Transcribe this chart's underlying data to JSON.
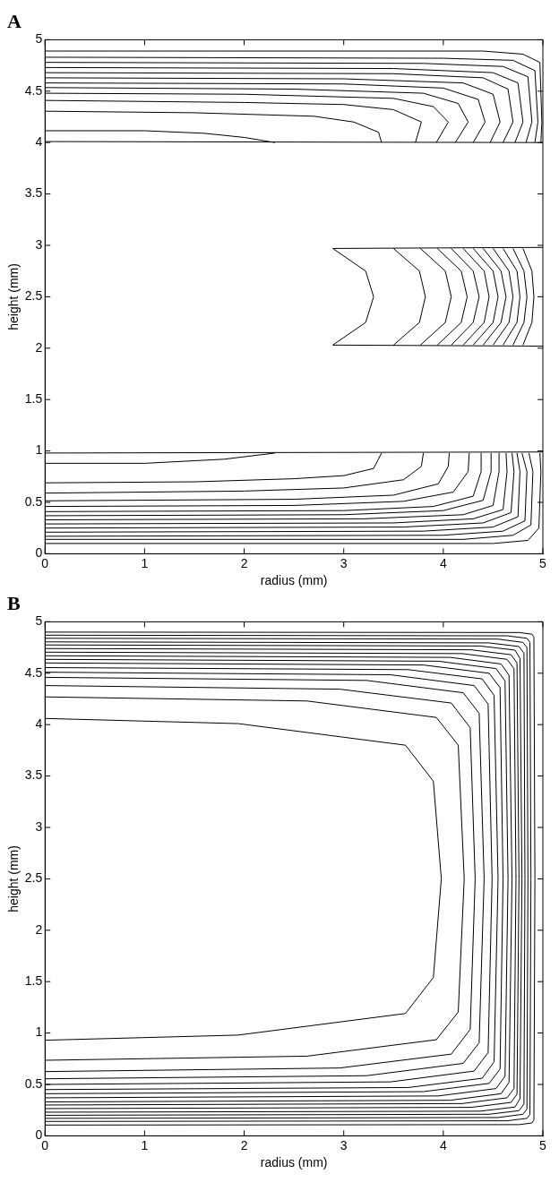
{
  "chart_data": [
    {
      "type": "line",
      "title": "A",
      "xlabel": "radius (mm)",
      "ylabel": "height (mm)",
      "color": "#000000",
      "marker": "none",
      "line_style": "solid",
      "grid": false,
      "legend": false,
      "xlim": [
        0,
        5
      ],
      "ylim": [
        0,
        5
      ],
      "xticks": [
        0,
        1,
        2,
        3,
        4,
        5
      ],
      "yticks": [
        0,
        0.5,
        1,
        1.5,
        2,
        2.5,
        3,
        3.5,
        4,
        4.5,
        5
      ],
      "series": [
        {
          "x": [
            0,
            5
          ],
          "values": [
            4.01,
            4.0
          ]
        },
        {
          "x": [
            0,
            1.0,
            1.6,
            2.0,
            2.31
          ],
          "values": [
            4.115,
            4.115,
            4.09,
            4.05,
            4.0
          ]
        },
        {
          "x": [
            0,
            1.5,
            2.7,
            3.1,
            3.35,
            3.38
          ],
          "values": [
            4.305,
            4.29,
            4.256,
            4.2,
            4.1,
            4.0
          ]
        },
        {
          "x": [
            0,
            2,
            3.0,
            3.5,
            3.78,
            3.72
          ],
          "values": [
            4.41,
            4.39,
            4.37,
            4.32,
            4.2,
            4.0
          ]
        },
        {
          "x": [
            0,
            2,
            3.5,
            3.9,
            4.05,
            3.93
          ],
          "values": [
            4.48,
            4.47,
            4.43,
            4.35,
            4.2,
            4.0
          ]
        },
        {
          "x": [
            0,
            2.5,
            3.8,
            4.15,
            4.25,
            4.12
          ],
          "values": [
            4.535,
            4.52,
            4.48,
            4.38,
            4.2,
            4.0
          ]
        },
        {
          "x": [
            0,
            3,
            4.0,
            4.35,
            4.42,
            4.3
          ],
          "values": [
            4.58,
            4.57,
            4.53,
            4.42,
            4.2,
            4.0
          ]
        },
        {
          "x": [
            0,
            3,
            4.2,
            4.5,
            4.57,
            4.47
          ],
          "values": [
            4.63,
            4.62,
            4.58,
            4.47,
            4.2,
            4.0
          ]
        },
        {
          "x": [
            0,
            3.5,
            4.4,
            4.65,
            4.7,
            4.6
          ],
          "values": [
            4.68,
            4.67,
            4.63,
            4.52,
            4.2,
            4.0
          ]
        },
        {
          "x": [
            0,
            3.5,
            4.5,
            4.75,
            4.8,
            4.72
          ],
          "values": [
            4.73,
            4.72,
            4.68,
            4.58,
            4.2,
            4.0
          ]
        },
        {
          "x": [
            0,
            3.8,
            4.6,
            4.85,
            4.89,
            4.83
          ],
          "values": [
            4.78,
            4.77,
            4.74,
            4.64,
            4.2,
            4.0
          ]
        },
        {
          "x": [
            0,
            4,
            4.7,
            4.92,
            4.95,
            4.92
          ],
          "values": [
            4.83,
            4.82,
            4.8,
            4.7,
            4.2,
            4.0
          ]
        },
        {
          "x": [
            0,
            4.4,
            4.8,
            4.97,
            4.99,
            4.98
          ],
          "values": [
            4.89,
            4.89,
            4.86,
            4.78,
            4.2,
            4.0
          ]
        },
        {
          "x": [
            2.89,
            5
          ],
          "values": [
            2.97,
            2.98
          ]
        },
        {
          "x": [
            2.89,
            5
          ],
          "values": [
            2.03,
            2.02
          ]
        },
        {
          "x": [
            2.89,
            3.22,
            3.3,
            3.22,
            2.89
          ],
          "values": [
            2.03,
            2.25,
            2.5,
            2.75,
            2.97
          ]
        },
        {
          "x": [
            3.5,
            3.76,
            3.82,
            3.76,
            3.5
          ],
          "values": [
            2.03,
            2.25,
            2.5,
            2.75,
            2.97
          ]
        },
        {
          "x": [
            3.77,
            4.02,
            4.08,
            4.02,
            3.77
          ],
          "values": [
            2.03,
            2.25,
            2.5,
            2.75,
            2.97
          ]
        },
        {
          "x": [
            3.94,
            4.18,
            4.24,
            4.18,
            3.94
          ],
          "values": [
            2.03,
            2.25,
            2.5,
            2.75,
            2.97
          ]
        },
        {
          "x": [
            4.08,
            4.3,
            4.36,
            4.3,
            4.08
          ],
          "values": [
            2.03,
            2.25,
            2.5,
            2.75,
            2.97
          ]
        },
        {
          "x": [
            4.2,
            4.41,
            4.46,
            4.41,
            4.2
          ],
          "values": [
            2.03,
            2.25,
            2.5,
            2.75,
            2.97
          ]
        },
        {
          "x": [
            4.3,
            4.5,
            4.55,
            4.5,
            4.3
          ],
          "values": [
            2.03,
            2.25,
            2.5,
            2.75,
            2.97
          ]
        },
        {
          "x": [
            4.4,
            4.58,
            4.63,
            4.58,
            4.4
          ],
          "values": [
            2.03,
            2.25,
            2.5,
            2.75,
            2.97
          ]
        },
        {
          "x": [
            4.5,
            4.66,
            4.7,
            4.66,
            4.5
          ],
          "values": [
            2.03,
            2.25,
            2.5,
            2.75,
            2.97
          ]
        },
        {
          "x": [
            4.6,
            4.74,
            4.77,
            4.74,
            4.6
          ],
          "values": [
            2.03,
            2.25,
            2.5,
            2.75,
            2.97
          ]
        },
        {
          "x": [
            4.7,
            4.81,
            4.84,
            4.81,
            4.7
          ],
          "values": [
            2.03,
            2.25,
            2.5,
            2.75,
            2.97
          ]
        },
        {
          "x": [
            4.8,
            4.89,
            4.91,
            4.89,
            4.8
          ],
          "values": [
            2.03,
            2.25,
            2.5,
            2.75,
            2.97
          ]
        },
        {
          "x": [
            0,
            5
          ],
          "values": [
            0.98,
            0.99
          ]
        },
        {
          "x": [
            0,
            1.0,
            1.8,
            2.31
          ],
          "values": [
            0.88,
            0.88,
            0.92,
            0.98
          ]
        },
        {
          "x": [
            0,
            1.5,
            2.5,
            3.0,
            3.3,
            3.38
          ],
          "values": [
            0.69,
            0.7,
            0.73,
            0.76,
            0.83,
            0.98
          ]
        },
        {
          "x": [
            0,
            2,
            3,
            3.6,
            3.78,
            3.8
          ],
          "values": [
            0.59,
            0.61,
            0.64,
            0.72,
            0.85,
            0.98
          ]
        },
        {
          "x": [
            0,
            2.5,
            3.5,
            3.95,
            4.05,
            4.06
          ],
          "values": [
            0.515,
            0.53,
            0.57,
            0.68,
            0.85,
            0.98
          ]
        },
        {
          "x": [
            0,
            2.5,
            3.6,
            4.1,
            4.25,
            4.26
          ],
          "values": [
            0.46,
            0.47,
            0.51,
            0.6,
            0.8,
            0.98
          ]
        },
        {
          "x": [
            0,
            3,
            3.9,
            4.3,
            4.38,
            4.38
          ],
          "values": [
            0.41,
            0.42,
            0.46,
            0.56,
            0.8,
            0.98
          ]
        },
        {
          "x": [
            0,
            3,
            4.0,
            4.4,
            4.48,
            4.48
          ],
          "values": [
            0.37,
            0.38,
            0.42,
            0.52,
            0.8,
            0.98
          ]
        },
        {
          "x": [
            0,
            3.2,
            4.2,
            4.5,
            4.56,
            4.56
          ],
          "values": [
            0.33,
            0.34,
            0.38,
            0.47,
            0.8,
            0.98
          ]
        },
        {
          "x": [
            0,
            3.5,
            4.3,
            4.6,
            4.64,
            4.63
          ],
          "values": [
            0.29,
            0.3,
            0.34,
            0.43,
            0.8,
            0.98
          ]
        },
        {
          "x": [
            0,
            3.6,
            4.4,
            4.68,
            4.71,
            4.69
          ],
          "values": [
            0.25,
            0.26,
            0.3,
            0.4,
            0.8,
            0.98
          ]
        },
        {
          "x": [
            0,
            3.8,
            4.5,
            4.75,
            4.77,
            4.74
          ],
          "values": [
            0.21,
            0.22,
            0.26,
            0.36,
            0.8,
            0.98
          ]
        },
        {
          "x": [
            0,
            4,
            4.6,
            4.82,
            4.84,
            4.79
          ],
          "values": [
            0.17,
            0.18,
            0.22,
            0.32,
            0.8,
            0.98
          ]
        },
        {
          "x": [
            0,
            4.2,
            4.7,
            4.88,
            4.9,
            4.86
          ],
          "values": [
            0.14,
            0.14,
            0.18,
            0.28,
            0.8,
            0.98
          ]
        },
        {
          "x": [
            0,
            4.5,
            4.85,
            4.96,
            4.98,
            4.97
          ],
          "values": [
            0.1,
            0.1,
            0.13,
            0.25,
            0.8,
            0.98
          ]
        }
      ]
    },
    {
      "type": "line",
      "title": "B",
      "xlabel": "radius (mm)",
      "ylabel": "height (mm)",
      "color": "#000000",
      "marker": "none",
      "line_style": "solid",
      "grid": false,
      "legend": false,
      "xlim": [
        0,
        5
      ],
      "ylim": [
        0,
        5
      ],
      "xticks": [
        0,
        1,
        2,
        3,
        4,
        5
      ],
      "yticks": [
        0,
        0.5,
        1,
        1.5,
        2,
        2.5,
        3,
        3.5,
        4,
        4.5,
        5
      ],
      "series": [
        {
          "x": [
            0,
            1.94,
            3.62,
            3.9,
            3.98,
            3.9,
            3.62,
            1.94,
            0
          ],
          "values": [
            0.93,
            0.98,
            1.19,
            1.54,
            2.5,
            3.45,
            3.8,
            4.01,
            4.06
          ]
        },
        {
          "x": [
            0,
            2.63,
            3.93,
            4.15,
            4.21,
            4.15,
            3.93,
            2.63,
            0
          ],
          "values": [
            0.735,
            0.775,
            0.935,
            1.205,
            2.5,
            3.8,
            4.07,
            4.23,
            4.27
          ]
        },
        {
          "x": [
            0,
            2.96,
            4.08,
            4.27,
            4.32,
            4.27,
            4.08,
            2.96,
            0
          ],
          "values": [
            0.625,
            0.66,
            0.795,
            1.035,
            2.5,
            3.97,
            4.21,
            4.345,
            4.38
          ]
        },
        {
          "x": [
            0,
            3.23,
            4.2,
            4.36,
            4.41,
            4.36,
            4.2,
            3.23,
            0
          ],
          "values": [
            0.555,
            0.585,
            0.705,
            0.905,
            2.5,
            4.11,
            4.31,
            4.43,
            4.46
          ]
        },
        {
          "x": [
            0,
            3.47,
            4.31,
            4.45,
            4.49,
            4.45,
            4.31,
            3.47,
            0
          ],
          "values": [
            0.5,
            0.525,
            0.63,
            0.81,
            2.5,
            4.2,
            4.38,
            4.485,
            4.51
          ]
        },
        {
          "x": [
            0,
            3.65,
            4.39,
            4.51,
            4.55,
            4.51,
            4.39,
            3.65,
            0
          ],
          "values": [
            0.45,
            0.47,
            0.56,
            0.72,
            2.5,
            4.285,
            4.445,
            4.535,
            4.555
          ]
        },
        {
          "x": [
            0,
            3.8,
            4.46,
            4.57,
            4.6,
            4.57,
            4.46,
            3.8,
            0
          ],
          "values": [
            0.41,
            0.43,
            0.51,
            0.65,
            2.5,
            4.36,
            4.5,
            4.58,
            4.6
          ]
        },
        {
          "x": [
            0,
            3.95,
            4.53,
            4.62,
            4.65,
            4.62,
            4.53,
            3.95,
            0
          ],
          "values": [
            0.37,
            0.388,
            0.46,
            0.58,
            2.5,
            4.425,
            4.545,
            4.617,
            4.635
          ]
        },
        {
          "x": [
            0,
            4.07,
            4.58,
            4.66,
            4.69,
            4.66,
            4.58,
            4.07,
            0
          ],
          "values": [
            0.33,
            0.346,
            0.41,
            0.52,
            2.5,
            4.48,
            4.59,
            4.654,
            4.67
          ]
        },
        {
          "x": [
            0,
            4.19,
            4.64,
            4.71,
            4.73,
            4.71,
            4.64,
            4.19,
            0
          ],
          "values": [
            0.3,
            0.314,
            0.37,
            0.46,
            2.5,
            4.545,
            4.635,
            4.691,
            4.705
          ]
        },
        {
          "x": [
            0,
            4.28,
            4.68,
            4.74,
            4.76,
            4.74,
            4.68,
            4.28,
            0
          ],
          "values": [
            0.265,
            0.277,
            0.325,
            0.405,
            2.5,
            4.6,
            4.68,
            4.728,
            4.74
          ]
        },
        {
          "x": [
            0,
            4.37,
            4.72,
            4.77,
            4.79,
            4.77,
            4.72,
            4.37,
            0
          ],
          "values": [
            0.23,
            0.24,
            0.28,
            0.36,
            2.5,
            4.645,
            4.725,
            4.765,
            4.775
          ]
        },
        {
          "x": [
            0,
            4.46,
            4.76,
            4.81,
            4.82,
            4.81,
            4.76,
            4.46,
            0
          ],
          "values": [
            0.2,
            0.21,
            0.245,
            0.31,
            2.5,
            4.695,
            4.76,
            4.795,
            4.805
          ]
        },
        {
          "x": [
            0,
            4.55,
            4.8,
            4.84,
            4.85,
            4.84,
            4.8,
            4.55,
            0
          ],
          "values": [
            0.17,
            0.178,
            0.21,
            0.26,
            2.5,
            4.75,
            4.8,
            4.832,
            4.84
          ]
        },
        {
          "x": [
            0,
            4.64,
            4.84,
            4.87,
            4.88,
            4.87,
            4.84,
            4.64,
            0
          ],
          "values": [
            0.14,
            0.146,
            0.17,
            0.21,
            2.5,
            4.8,
            4.84,
            4.864,
            4.87
          ]
        },
        {
          "x": [
            0,
            4.76,
            4.89,
            4.91,
            4.92,
            4.91,
            4.89,
            4.76,
            0
          ],
          "values": [
            0.105,
            0.109,
            0.125,
            0.155,
            2.5,
            4.85,
            4.88,
            4.896,
            4.9
          ]
        }
      ]
    }
  ]
}
